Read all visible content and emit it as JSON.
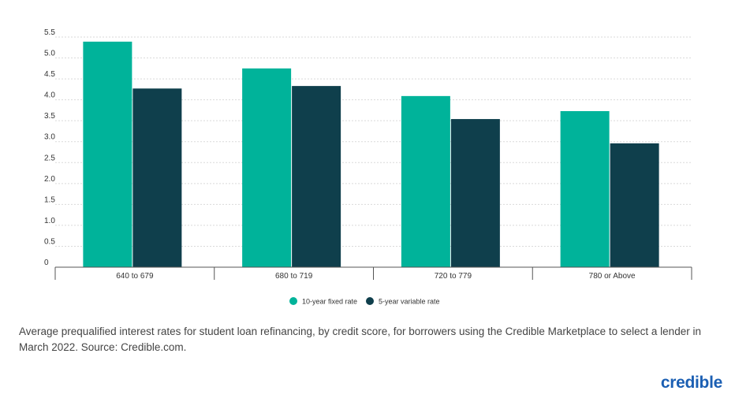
{
  "chart_data": {
    "type": "bar",
    "categories": [
      "640 to 679",
      "680 to 719",
      "720 to 779",
      "780 or Above"
    ],
    "series": [
      {
        "name": "10-year fixed rate",
        "color": "#00b39a",
        "values": [
          5.39,
          4.75,
          4.09,
          3.73
        ]
      },
      {
        "name": "5-year variable rate",
        "color": "#0f3f4c",
        "values": [
          4.27,
          4.33,
          3.54,
          2.96
        ]
      }
    ],
    "yticks": [
      "0",
      "0.5",
      "1.0",
      "1.5",
      "2.0",
      "2.5",
      "3.0",
      "3.5",
      "4.0",
      "4.5",
      "5.0",
      "5.5"
    ],
    "ylim": [
      0,
      5.5
    ],
    "grid": true,
    "legend_position": "bottom"
  },
  "caption": "Average prequalified interest rates for student loan refinancing, by credit score, for borrowers using the Credible Marketplace to select a lender in March 2022. Source: Credible.com.",
  "brand": "credible"
}
